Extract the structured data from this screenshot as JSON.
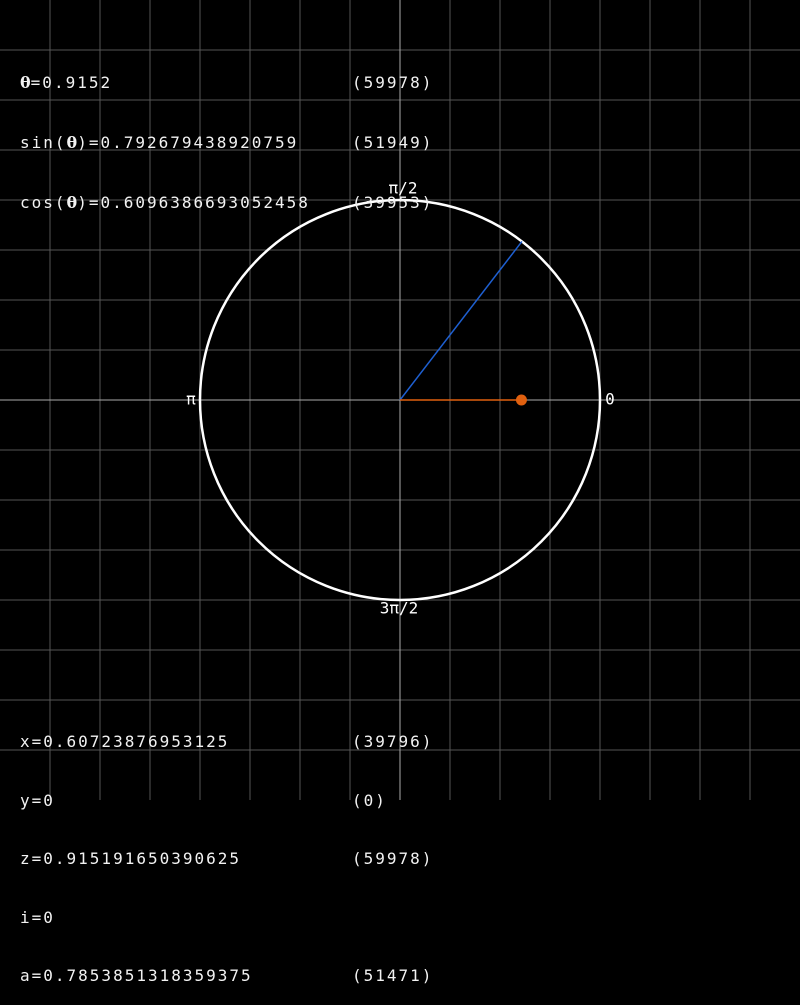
{
  "readout_top": [
    {
      "pre": "",
      "symbol": "θ",
      "post": "=0.9152",
      "raw": "(59978)"
    },
    {
      "pre": "sin(",
      "symbol": "θ",
      "post": ")=0.792679438920759",
      "raw": "(51949)"
    },
    {
      "pre": "cos(",
      "symbol": "θ",
      "post": ")=0.6096386693052458",
      "raw": "(39953)"
    }
  ],
  "readout_bottom": [
    {
      "text": "x=0.60723876953125",
      "raw": "(39796)"
    },
    {
      "text": "y=0",
      "raw": "(0)"
    },
    {
      "text": "z=0.915191650390625",
      "raw": "(59978)"
    },
    {
      "text": "i=0",
      "raw": ""
    },
    {
      "text": "a=0.7853851318359375",
      "raw": "(51471)"
    }
  ],
  "axis_labels": {
    "right": "0",
    "top": "π/2",
    "left": "π",
    "bottom": "3π/2"
  },
  "theta": 0.9152,
  "cos_value": 0.60723876953125,
  "colors": {
    "background": "#000000",
    "grid": "#555555",
    "axis": "#aaaaaa",
    "circle": "#ffffff",
    "angle_line": "#1e5fd0",
    "cos_line": "#e0600f"
  }
}
